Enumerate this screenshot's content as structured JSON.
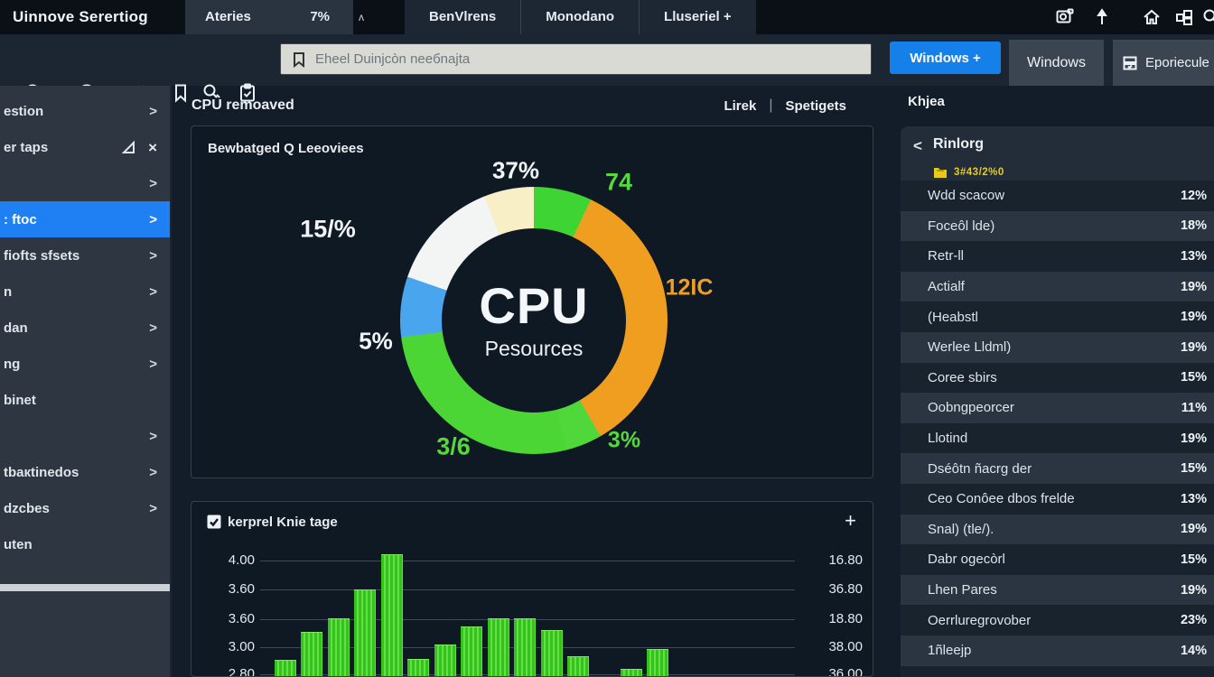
{
  "window": {
    "title": "Uinnove Serertiog"
  },
  "topbar": {
    "left_tab": "Ateries",
    "left_value": "7%",
    "caret": "ʌ",
    "tabs": [
      "BenVlrens",
      "Monodano",
      "Lluseriel +"
    ],
    "icons": [
      "screenshot-icon",
      "pin-icon",
      "home-icon",
      "tiles-icon",
      "search-icon"
    ]
  },
  "toolbar": {
    "icons": [
      "search-icon",
      "target-icon",
      "pencil-icon",
      "bookmark-icon",
      "zoom-icon",
      "clipboard-check-icon"
    ],
    "search": {
      "placeholder": "Eheel Duinjcòn neeбnajta"
    },
    "primary_button": "Windows +",
    "secondary_tab": "Windows",
    "panel_button": "Eporiecule"
  },
  "sidebar": {
    "items": [
      {
        "label": "estion",
        "chevron": true
      },
      {
        "label": "er taps",
        "window_controls": true
      },
      {
        "label": "",
        "chevron": true
      },
      {
        "label": ": ftoc",
        "chevron": true,
        "active": true
      },
      {
        "label": "fiofts sfsets",
        "chevron": true
      },
      {
        "label": "n",
        "chevron": true
      },
      {
        "label": "dan",
        "chevron": true
      },
      {
        "label": "ng",
        "chevron": true
      },
      {
        "label": "binet",
        "chevron": false
      },
      {
        "label": "",
        "chevron": true
      },
      {
        "label": "tbaкtinedos",
        "chevron": true
      },
      {
        "label": "dzcbes",
        "chevron": true
      },
      {
        "label": "uten",
        "chevron": false
      }
    ]
  },
  "main": {
    "header": {
      "title": "CPU remoaved",
      "link1": "Lirek",
      "separator": "|",
      "link2": "Spetigets"
    },
    "donut_card": {
      "title": "Bewbatged Q Leeoviees"
    },
    "bar_card": {
      "title": "kerprel Knie tage",
      "add_button": "+"
    }
  },
  "right_panel": {
    "title": "Khjea",
    "card": {
      "back_glyph": "<",
      "title": "Rinlorg",
      "badge": "3#43/2%0",
      "rows": [
        {
          "label": "Wdd scacow",
          "value": "12%"
        },
        {
          "label": "Foceôl lde)",
          "value": "18%"
        },
        {
          "label": "Retr-ll",
          "value": "13%"
        },
        {
          "label": "Actialf",
          "value": "19%"
        },
        {
          "label": "(Heabstl",
          "value": "19%"
        },
        {
          "label": "Werlee Lldml)",
          "value": "19%"
        },
        {
          "label": "Coree sbirs",
          "value": "15%"
        },
        {
          "label": "Oobngpeorcer",
          "value": "11%"
        },
        {
          "label": "Llotind",
          "value": "19%"
        },
        {
          "label": "Dséôtn ñacrg der",
          "value": "15%"
        },
        {
          "label": "Ceo Conôee dbos frelde",
          "value": "13%"
        },
        {
          "label": "Snal) (tle/).",
          "value": "19%"
        },
        {
          "label": "Dabr ogecòrl",
          "value": "15%"
        },
        {
          "label": "Lhen Pares",
          "value": "19%"
        },
        {
          "label": "Oerrluregrovober",
          "value": "23%"
        },
        {
          "label": "1ñleejp",
          "value": "14%"
        }
      ]
    }
  },
  "ui_glyphs": {
    "chevron": ">",
    "close": "×"
  },
  "chart_data": [
    {
      "type": "pie",
      "title": "Bewbatged Q Leeoviees",
      "center_label": "CPU",
      "center_sublabel": "Pesources",
      "legend_position": "none",
      "segments": [
        {
          "label": "74",
          "value": 7.0,
          "color": "#3ed434"
        },
        {
          "label": "12IC",
          "value": 34.7,
          "color": "#f09e20"
        },
        {
          "label": "3%",
          "value": 4.3,
          "color": "#50d73a"
        },
        {
          "label": "3/6",
          "value": 27.0,
          "color": "#4bd636"
        },
        {
          "label": "5%",
          "value": 7.3,
          "color": "#4aa5ef"
        },
        {
          "label": "15/%",
          "value": 13.6,
          "color": "#f3f5f4"
        },
        {
          "label": "37%",
          "value": 6.1,
          "color": "#f8efc6"
        }
      ],
      "callouts": [
        {
          "text": "37%",
          "color": "#f2f5f7"
        },
        {
          "text": "74",
          "color": "#55d83d"
        },
        {
          "text": "12IC",
          "color": "#ef9d25"
        },
        {
          "text": "3%",
          "color": "#55d83d"
        },
        {
          "text": "3/6",
          "color": "#55d83d"
        },
        {
          "text": "5%",
          "color": "#f2f5f7"
        },
        {
          "text": "15/%",
          "color": "#f2f5f7"
        }
      ]
    },
    {
      "type": "bar",
      "title": "kerprel Knie tage",
      "values": [
        2.93,
        3.23,
        3.38,
        3.69,
        4.07,
        2.94,
        3.09,
        3.29,
        3.38,
        3.38,
        3.25,
        2.97,
        2.83,
        3.04
      ],
      "skip_slot_after_index": 11,
      "bar_color": "#3fd02a",
      "left_ticks": [
        "4.00",
        "3.60",
        "3.60",
        "3.00",
        "2.80"
      ],
      "right_ticks": [
        "16.80",
        "36.80",
        "18.80",
        "38.00",
        "36.00"
      ],
      "ylim": [
        2.55,
        4.25
      ],
      "grid": true,
      "xlabel": "",
      "ylabel": ""
    }
  ]
}
